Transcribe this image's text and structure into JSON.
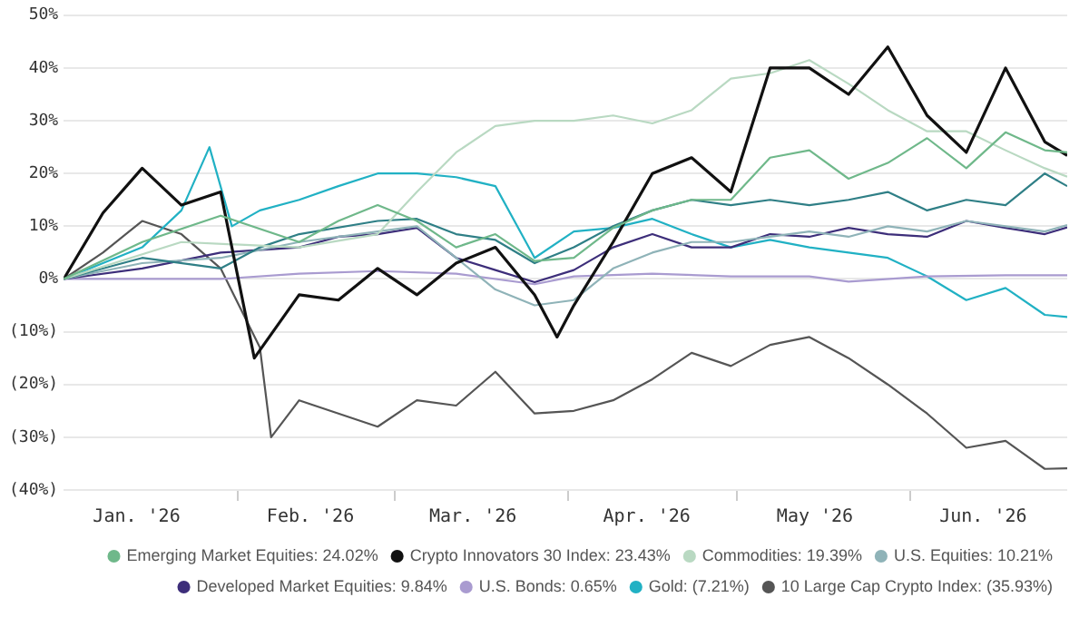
{
  "chart_data": {
    "type": "line",
    "xlim": [
      "2026-01-01",
      "2026-06-29"
    ],
    "xticks": [
      {
        "value": "2026-01-14",
        "label": "Jan. '26"
      },
      {
        "value": "2026-02-01",
        "label": null
      },
      {
        "value": "2026-02-14",
        "label": "Feb. '26"
      },
      {
        "value": "2026-03-01",
        "label": null
      },
      {
        "value": "2026-03-15",
        "label": "Mar. '26"
      },
      {
        "value": "2026-04-01",
        "label": null
      },
      {
        "value": "2026-04-15",
        "label": "Apr. '26"
      },
      {
        "value": "2026-05-01",
        "label": null
      },
      {
        "value": "2026-05-15",
        "label": "May '26"
      },
      {
        "value": "2026-06-01",
        "label": null
      },
      {
        "value": "2026-06-14",
        "label": "Jun. '26"
      }
    ],
    "ylim": [
      -40,
      50
    ],
    "yticks": [
      {
        "value": -40,
        "label": "(40%)"
      },
      {
        "value": -30,
        "label": "(30%)"
      },
      {
        "value": -20,
        "label": "(20%)"
      },
      {
        "value": -10,
        "label": "(10%)"
      },
      {
        "value": 0,
        "label": "0%"
      },
      {
        "value": 10,
        "label": "10%"
      },
      {
        "value": 20,
        "label": "20%"
      },
      {
        "value": 30,
        "label": "30%"
      },
      {
        "value": 40,
        "label": "40%"
      },
      {
        "value": 50,
        "label": "50%"
      }
    ],
    "grid": "y",
    "legend": "bottom",
    "marker": "none",
    "line_style": "solid",
    "series": [
      {
        "name": "Emerging Market Equities: 24.02%",
        "color": "#6fb88a",
        "x": [
          "2026-01-01",
          "2026-01-15",
          "2026-01-29",
          "2026-02-12",
          "2026-02-19",
          "2026-02-26",
          "2026-03-05",
          "2026-03-12",
          "2026-03-19",
          "2026-03-26",
          "2026-04-02",
          "2026-04-09",
          "2026-04-16",
          "2026-04-23",
          "2026-04-30",
          "2026-05-07",
          "2026-05-14",
          "2026-05-21",
          "2026-05-28",
          "2026-06-04",
          "2026-06-11",
          "2026-06-18",
          "2026-06-25",
          "2026-06-29"
        ],
        "values": [
          0,
          7,
          12,
          7,
          11,
          14,
          11,
          6,
          8.5,
          3.4,
          4,
          9.7,
          13,
          15,
          15,
          23,
          24.4,
          19,
          22,
          26.7,
          21,
          27.8,
          24.4,
          24
        ]
      },
      {
        "name": "Crypto Innovators 30 Index: 23.43%",
        "color": "#111111",
        "x": [
          "2026-01-01",
          "2026-01-08",
          "2026-01-15",
          "2026-01-22",
          "2026-01-29",
          "2026-02-04",
          "2026-02-12",
          "2026-02-19",
          "2026-02-26",
          "2026-03-05",
          "2026-03-12",
          "2026-03-19",
          "2026-03-26",
          "2026-03-30",
          "2026-04-02",
          "2026-04-09",
          "2026-04-16",
          "2026-04-23",
          "2026-04-30",
          "2026-05-07",
          "2026-05-14",
          "2026-05-21",
          "2026-05-28",
          "2026-06-04",
          "2026-06-11",
          "2026-06-18",
          "2026-06-25",
          "2026-06-29"
        ],
        "values": [
          0,
          12.5,
          21,
          14,
          16.5,
          -15,
          -3,
          -4,
          2,
          -3,
          3,
          6,
          -3,
          -11,
          -5,
          7,
          20,
          23,
          16.5,
          40,
          40,
          35,
          44,
          31,
          24,
          40,
          26,
          23.4
        ]
      },
      {
        "name": "Commodities: 19.39%",
        "color": "#b9d9c2",
        "x": [
          "2026-01-01",
          "2026-01-22",
          "2026-02-12",
          "2026-02-26",
          "2026-03-05",
          "2026-03-12",
          "2026-03-19",
          "2026-03-26",
          "2026-04-02",
          "2026-04-09",
          "2026-04-16",
          "2026-04-23",
          "2026-04-30",
          "2026-05-07",
          "2026-05-14",
          "2026-05-21",
          "2026-05-28",
          "2026-06-04",
          "2026-06-11",
          "2026-06-18",
          "2026-06-25",
          "2026-06-29"
        ],
        "values": [
          0,
          7,
          6,
          8.5,
          16.5,
          24,
          29,
          30,
          30,
          31,
          29.5,
          32,
          38,
          39,
          41.5,
          37,
          32,
          28,
          28,
          24.4,
          21,
          19.4
        ]
      },
      {
        "color": "#2f7f86",
        "x": [
          "2026-01-01",
          "2026-01-15",
          "2026-01-29",
          "2026-02-05",
          "2026-02-12",
          "2026-02-26",
          "2026-03-05",
          "2026-03-12",
          "2026-03-19",
          "2026-03-26",
          "2026-04-02",
          "2026-04-09",
          "2026-04-16",
          "2026-04-23",
          "2026-04-30",
          "2026-05-07",
          "2026-05-14",
          "2026-05-21",
          "2026-05-28",
          "2026-06-04",
          "2026-06-11",
          "2026-06-18",
          "2026-06-25",
          "2026-06-29"
        ],
        "values": [
          0,
          4,
          2,
          6,
          8.5,
          11,
          11.4,
          8.5,
          7.4,
          3,
          6,
          10,
          13,
          15,
          14,
          15,
          14,
          15,
          16.5,
          13,
          15,
          14,
          20,
          17.6
        ]
      },
      {
        "name": "U.S. Equities: 10.21%",
        "color": "#8fb3b8",
        "x": [
          "2026-01-01",
          "2026-01-15",
          "2026-01-29",
          "2026-02-12",
          "2026-02-26",
          "2026-03-05",
          "2026-03-12",
          "2026-03-19",
          "2026-03-26",
          "2026-04-02",
          "2026-04-09",
          "2026-04-16",
          "2026-04-23",
          "2026-04-30",
          "2026-05-07",
          "2026-05-14",
          "2026-05-21",
          "2026-05-28",
          "2026-06-04",
          "2026-06-11",
          "2026-06-18",
          "2026-06-25",
          "2026-06-29"
        ],
        "values": [
          0,
          3,
          4,
          7,
          9,
          10,
          4,
          -2,
          -5,
          -4,
          2,
          5,
          7,
          7,
          8,
          9,
          8,
          10,
          9,
          11,
          10,
          9,
          10.2
        ]
      },
      {
        "name": "Developed Market Equities: 9.84%",
        "color": "#3d2e7a",
        "x": [
          "2026-01-01",
          "2026-01-15",
          "2026-01-29",
          "2026-02-12",
          "2026-02-19",
          "2026-02-26",
          "2026-03-05",
          "2026-03-12",
          "2026-03-19",
          "2026-03-26",
          "2026-04-02",
          "2026-04-09",
          "2026-04-16",
          "2026-04-23",
          "2026-04-30",
          "2026-05-07",
          "2026-05-14",
          "2026-05-21",
          "2026-05-28",
          "2026-06-04",
          "2026-06-11",
          "2026-06-18",
          "2026-06-25",
          "2026-06-29"
        ],
        "values": [
          0,
          2,
          5,
          6,
          8,
          8.5,
          9.7,
          4,
          1.7,
          -0.6,
          1.7,
          6,
          8.5,
          6,
          6,
          8.5,
          8,
          9.7,
          8.5,
          8,
          11,
          9.7,
          8.5,
          9.8
        ]
      },
      {
        "name": "U.S. Bonds: 0.65%",
        "color": "#a99bd0",
        "x": [
          "2026-01-01",
          "2026-01-15",
          "2026-01-29",
          "2026-02-12",
          "2026-02-26",
          "2026-03-12",
          "2026-03-26",
          "2026-04-02",
          "2026-04-16",
          "2026-04-30",
          "2026-05-14",
          "2026-05-21",
          "2026-06-04",
          "2026-06-18",
          "2026-06-29"
        ],
        "values": [
          0,
          0,
          0,
          1,
          1.5,
          1,
          -1,
          0.5,
          1,
          0.5,
          0.5,
          -0.5,
          0.5,
          0.7,
          0.7
        ]
      },
      {
        "name": "Gold: (7.21%)",
        "color": "#21b1c4",
        "x": [
          "2026-01-01",
          "2026-01-08",
          "2026-01-15",
          "2026-01-22",
          "2026-01-27",
          "2026-01-31",
          "2026-02-05",
          "2026-02-12",
          "2026-02-19",
          "2026-02-26",
          "2026-03-05",
          "2026-03-12",
          "2026-03-19",
          "2026-03-26",
          "2026-04-02",
          "2026-04-09",
          "2026-04-16",
          "2026-04-23",
          "2026-04-30",
          "2026-05-07",
          "2026-05-14",
          "2026-05-21",
          "2026-05-28",
          "2026-06-04",
          "2026-06-11",
          "2026-06-18",
          "2026-06-25",
          "2026-06-29"
        ],
        "values": [
          0,
          3,
          6,
          13,
          25,
          10,
          13,
          15,
          17.6,
          20,
          20,
          19.3,
          17.6,
          4,
          9,
          9.7,
          11.4,
          8.5,
          6,
          7.4,
          6,
          5,
          4,
          0.5,
          -4,
          -1.7,
          -6.8,
          -7.2
        ]
      },
      {
        "name": "10 Large Cap Crypto Index: (35.93%)",
        "color": "#555555",
        "x": [
          "2026-01-01",
          "2026-01-08",
          "2026-01-15",
          "2026-01-22",
          "2026-01-29",
          "2026-02-05",
          "2026-02-07",
          "2026-02-12",
          "2026-02-19",
          "2026-02-26",
          "2026-03-05",
          "2026-03-12",
          "2026-03-19",
          "2026-03-26",
          "2026-04-02",
          "2026-04-09",
          "2026-04-16",
          "2026-04-23",
          "2026-04-30",
          "2026-05-07",
          "2026-05-14",
          "2026-05-21",
          "2026-05-28",
          "2026-06-04",
          "2026-06-11",
          "2026-06-18",
          "2026-06-25",
          "2026-06-29"
        ],
        "values": [
          0,
          5,
          11,
          8.5,
          2,
          -13,
          -30,
          -23,
          -25.5,
          -28,
          -23,
          -24,
          -17.6,
          -25.5,
          -25,
          -23,
          -19,
          -14,
          -16.5,
          -12.5,
          -11,
          -15,
          -20,
          -25.5,
          -32,
          -30.7,
          -36,
          -35.9
        ]
      }
    ]
  }
}
